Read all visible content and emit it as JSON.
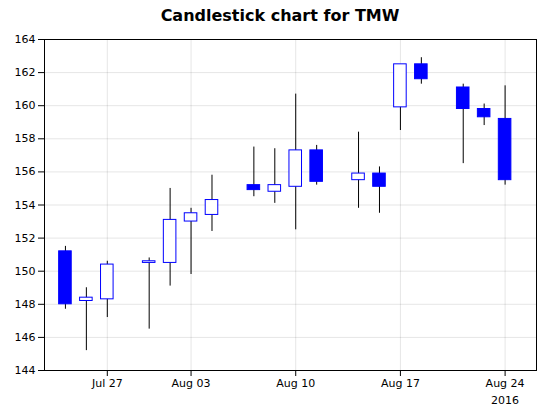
{
  "chart_data": {
    "type": "candlestick",
    "title": "Candlestick chart for TMW",
    "x": [
      1,
      2,
      3,
      5,
      6,
      7,
      8,
      10,
      11,
      12,
      13,
      15,
      16,
      17,
      18,
      20,
      21,
      22
    ],
    "open": [
      151.2,
      148.2,
      148.3,
      150.5,
      150.5,
      153.0,
      153.4,
      155.2,
      154.8,
      155.1,
      157.3,
      155.5,
      155.9,
      159.9,
      162.5,
      161.1,
      159.8,
      159.2
    ],
    "high": [
      151.5,
      149.0,
      150.6,
      150.8,
      155.0,
      153.8,
      155.8,
      157.5,
      157.4,
      160.7,
      157.6,
      158.4,
      156.3,
      162.4,
      162.9,
      161.3,
      160.1,
      161.2
    ],
    "low": [
      147.7,
      145.2,
      147.2,
      146.5,
      149.1,
      149.8,
      152.4,
      154.5,
      154.1,
      152.5,
      155.2,
      153.8,
      153.5,
      158.5,
      161.3,
      156.5,
      158.8,
      155.2
    ],
    "close": [
      148.0,
      148.4,
      150.4,
      150.6,
      153.1,
      153.5,
      154.3,
      154.9,
      155.2,
      157.3,
      155.4,
      155.9,
      155.1,
      162.5,
      161.6,
      159.8,
      159.3,
      155.5
    ],
    "colors": [
      "#0000ff",
      "#ffffff",
      "#ffffff",
      "#ffffff",
      "#ffffff",
      "#ffffff",
      "#ffffff",
      "#0000ff",
      "#ffffff",
      "#ffffff",
      "#0000ff",
      "#ffffff",
      "#0000ff",
      "#ffffff",
      "#0000ff",
      "#0000ff",
      "#0000ff",
      "#0000ff"
    ],
    "color": "#0000ff",
    "xlim": [
      0,
      23.5
    ],
    "xticks": [
      {
        "value": 3,
        "label": "Jul 27"
      },
      {
        "value": 7,
        "label": "Aug 03"
      },
      {
        "value": 12,
        "label": "Aug 10"
      },
      {
        "value": 17,
        "label": "Aug 17"
      },
      {
        "value": 22,
        "label": "Aug 24"
      }
    ],
    "ylim": [
      144,
      164
    ],
    "yticks": [
      144,
      146,
      148,
      150,
      152,
      154,
      156,
      158,
      160,
      162,
      164
    ],
    "grid": true,
    "annotations": [
      {
        "text": "2016",
        "x": 22
      }
    ]
  }
}
